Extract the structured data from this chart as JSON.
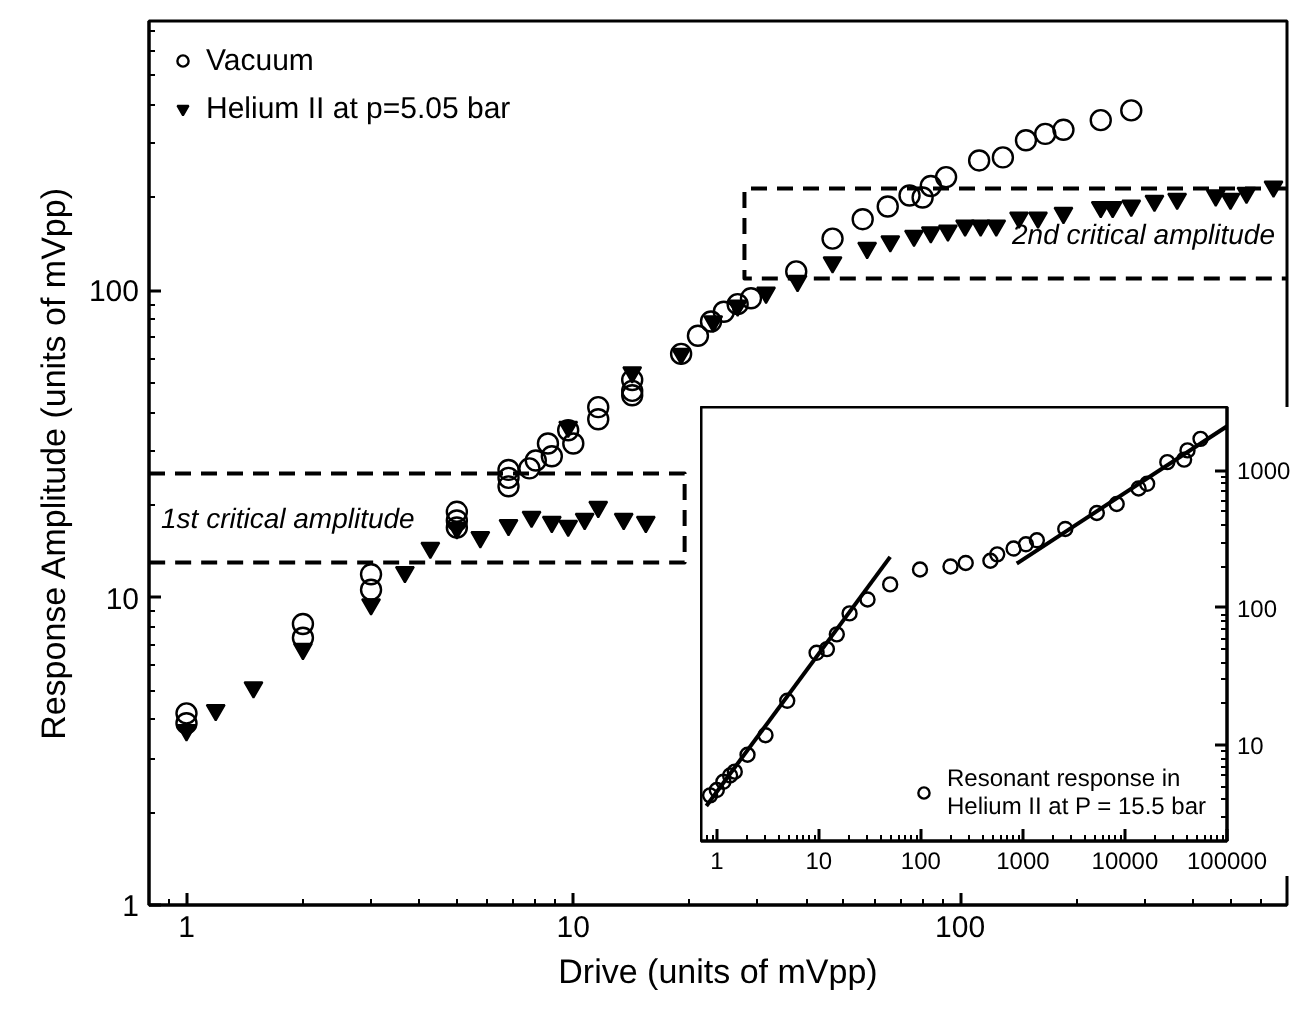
{
  "chart_data": [
    {
      "type": "scatter",
      "xlabel": "Drive (units of mVpp)",
      "ylabel": "Response Amplitude (units of mVpp)",
      "log": "xy",
      "xlim": [
        0.8,
        700
      ],
      "ylim": [
        1,
        750
      ],
      "xticks": [
        1,
        10,
        100
      ],
      "yticks": [
        1,
        10,
        100
      ],
      "legend": "top left",
      "grid": false,
      "annotations": [
        "1st critical amplitude",
        "2nd critical amplitude"
      ],
      "series": [
        {
          "name": "Vacuum",
          "color": "#000000",
          "marker": "circle",
          "x": [
            1,
            1,
            2,
            2,
            3,
            3,
            5,
            5,
            5,
            6.8,
            6.8,
            6.8,
            7.7,
            8.0,
            8.6,
            8.8,
            9.7,
            10,
            11.6,
            11.6,
            14.2,
            14.2,
            14.2,
            19,
            21,
            22.7,
            24.5,
            26.6,
            28.8,
            37.7,
            46.8,
            56,
            65,
            74,
            80,
            84,
            92,
            112,
            129,
            148,
            166,
            185,
            231,
            277
          ],
          "values": [
            4.2,
            3.9,
            8.2,
            7.4,
            11.9,
            10.6,
            19,
            17.8,
            16.9,
            26,
            24.5,
            23,
            26.3,
            27.9,
            31.7,
            28.8,
            35,
            31.7,
            41.6,
            38,
            51,
            47,
            45.5,
            62,
            71,
            79,
            85,
            90,
            94,
            115,
            147,
            170,
            187,
            203,
            200,
            218,
            233,
            264,
            270,
            307,
            322,
            332,
            357,
            384
          ]
        },
        {
          "name": "Helium II at p=5.05 bar",
          "color": "#000000",
          "marker": "triangle",
          "x": [
            1,
            1.19,
            1.49,
            2,
            3,
            3.67,
            4.27,
            5,
            5.75,
            6.8,
            7.8,
            8.8,
            9.7,
            10.7,
            11.6,
            13.5,
            15.4,
            9.7,
            14.2,
            19,
            23,
            26.6,
            31.5,
            38,
            46.8,
            57.5,
            66,
            76,
            84,
            93,
            103,
            113,
            124,
            142,
            159,
            185,
            231,
            248,
            277,
            318,
            364,
            458,
            500,
            550,
            646
          ],
          "values": [
            3.7,
            4.3,
            5.1,
            6.8,
            9.5,
            12.1,
            14.5,
            16.8,
            15.7,
            17.2,
            18.3,
            17.6,
            17.1,
            18.0,
            19.7,
            18.0,
            17.6,
            35.9,
            54,
            62,
            79,
            89,
            98,
            107,
            123,
            137,
            144,
            150,
            154,
            156,
            162,
            162,
            162,
            172,
            172,
            178,
            186,
            186,
            188,
            195,
            198,
            203,
            198,
            207,
            217
          ]
        },
        {
          "type": "line",
          "color": "#000000",
          "line_style": "dashed",
          "x": [
            0.8,
            19.4,
            19.4,
            0.8
          ],
          "values": [
            25.3,
            25.3,
            13,
            13
          ]
        },
        {
          "type": "line",
          "color": "#000000",
          "line_style": "dashed",
          "x": [
            700,
            27.7,
            27.7,
            700
          ],
          "values": [
            214,
            214,
            109,
            109
          ]
        }
      ]
    },
    {
      "type": "scatter",
      "log": "xy",
      "xlim": [
        0.7,
        100000
      ],
      "ylim": [
        2,
        2900
      ],
      "xticks": [
        1,
        10,
        100,
        1000,
        10000,
        100000
      ],
      "yticks": [
        10,
        100,
        1000
      ],
      "legend": "bottom right",
      "grid": false,
      "series": [
        {
          "name": "Resonant response in\nHelium II at P = 15.5 bar",
          "color": "#000000",
          "marker": "circle",
          "x": [
            0.86,
            1.0,
            1.16,
            1.35,
            1.5,
            2.0,
            3.0,
            4.9,
            9.5,
            12,
            15,
            20,
            30,
            50,
            98,
            195,
            275,
            480,
            560,
            810,
            1070,
            1370,
            2600,
            5300,
            8300,
            13600,
            16500,
            26000,
            38000,
            41000,
            55000
          ],
          "values": [
            4.3,
            4.7,
            5.4,
            6.0,
            6.4,
            8.5,
            11.8,
            21,
            47,
            50,
            64,
            91,
            115,
            148,
            190,
            200,
            212,
            220,
            245,
            270,
            290,
            310,
            375,
            490,
            570,
            740,
            800,
            1150,
            1200,
            1400,
            1700
          ]
        },
        {
          "type": "line",
          "color": "#000000",
          "x": [
            0.79,
            50
          ],
          "values": [
            3.6,
            235
          ]
        },
        {
          "type": "line",
          "color": "#000000",
          "x": [
            870,
            100000
          ],
          "values": [
            210,
            2100
          ]
        }
      ]
    }
  ]
}
